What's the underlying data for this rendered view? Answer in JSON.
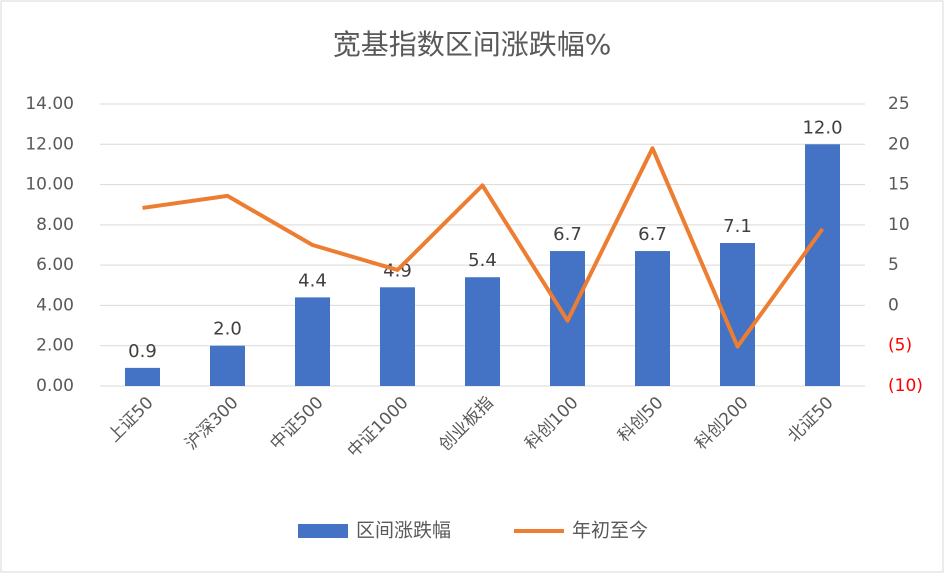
{
  "chart_data": {
    "type": "bar-line",
    "title": "宽基指数区间涨跌幅%",
    "categories": [
      "上证50",
      "沪深300",
      "中证500",
      "中证1000",
      "创业板指",
      "科创100",
      "科创50",
      "科创200",
      "北证50"
    ],
    "series": [
      {
        "name": "区间涨跌幅",
        "type": "bar",
        "color": "#4472c4",
        "values": [
          0.9,
          2.0,
          4.4,
          4.9,
          5.4,
          6.7,
          6.7,
          7.1,
          12.0
        ],
        "value_labels": [
          "0.9",
          "2.0",
          "4.4",
          "4.9",
          "5.4",
          "6.7",
          "6.7",
          "7.1",
          "12.0"
        ]
      },
      {
        "name": "年初至今",
        "type": "line",
        "axis": "y2",
        "color": "#ed7d31",
        "values": [
          12.1,
          13.6,
          7.5,
          4.4,
          14.9,
          -1.9,
          19.5,
          -5.1,
          9.5
        ]
      }
    ],
    "ylim": [
      0,
      14
    ],
    "yticks": [
      {
        "value": 0,
        "label": "0.00"
      },
      {
        "value": 2,
        "label": "2.00"
      },
      {
        "value": 4,
        "label": "4.00"
      },
      {
        "value": 6,
        "label": "6.00"
      },
      {
        "value": 8,
        "label": "8.00"
      },
      {
        "value": 10,
        "label": "10.00"
      },
      {
        "value": 12,
        "label": "12.00"
      },
      {
        "value": 14,
        "label": "14.00"
      }
    ],
    "y2lim": [
      -10,
      25
    ],
    "y2ticks": [
      {
        "value": -10,
        "label": "(10)"
      },
      {
        "value": -5,
        "label": "(5)"
      },
      0,
      5,
      10,
      15,
      20,
      25
    ],
    "negative_tick_color": "#ff0000",
    "grid": true,
    "legend": "bottom"
  }
}
